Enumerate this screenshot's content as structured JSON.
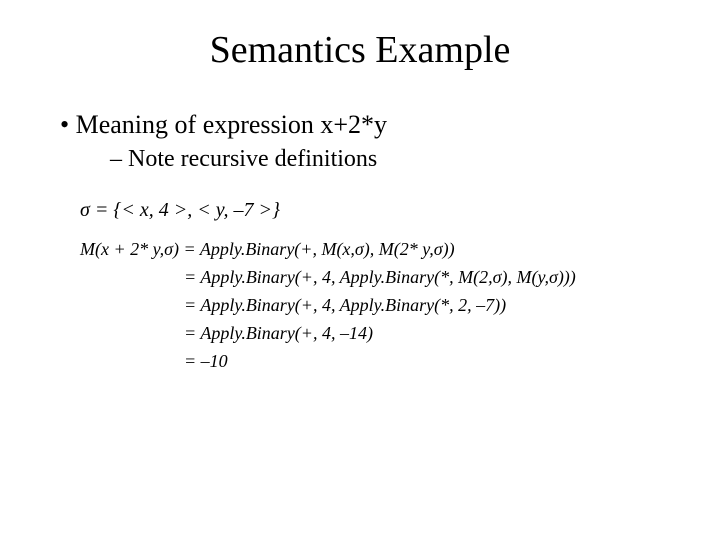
{
  "title": "Semantics Example",
  "bullets": {
    "l1": "Meaning of expression x+2*y",
    "l2": "Note recursive definitions"
  },
  "math": {
    "sigma": "σ = {< x, 4 >, < y, –7 >}",
    "line1_lhs": "M(x + 2* y,σ)",
    "line1_rhs": " = Apply.Binary(+, M(x,σ), M(2* y,σ))",
    "line2": "= Apply.Binary(+, 4, Apply.Binary(*, M(2,σ), M(y,σ)))",
    "line3": "= Apply.Binary(+, 4, Apply.Binary(*, 2, –7))",
    "line4": "= Apply.Binary(+, 4, –14)",
    "line5": "= –10"
  },
  "style": {
    "background": "#ffffff",
    "text_color": "#000000",
    "font_family": "Times New Roman",
    "title_fontsize": 38,
    "bullet_l1_fontsize": 26,
    "bullet_l2_fontsize": 24,
    "math_fontsize": 18
  }
}
